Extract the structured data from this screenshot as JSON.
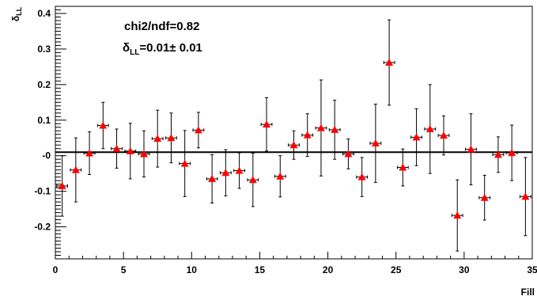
{
  "chart_data": {
    "type": "scatter",
    "xlabel": "Fill",
    "ylabel_symbol": "δ",
    "ylabel_subscript": "LL",
    "xlim": [
      0,
      35
    ],
    "ylim": [
      -0.29,
      0.42
    ],
    "x_ticks": [
      0,
      5,
      10,
      15,
      20,
      25,
      30,
      35
    ],
    "y_ticks": [
      -0.2,
      -0.1,
      0,
      0.1,
      0.2,
      0.3,
      0.4
    ],
    "y_tick_labels": [
      "-0.2",
      "-0.1",
      "-0",
      "0.1",
      "0.2",
      "0.3",
      "0.4"
    ],
    "x_tick_labels": [
      "0",
      "5",
      "10",
      "15",
      "20",
      "25",
      "30",
      "35"
    ],
    "fit_line_y": 0.01,
    "stats": {
      "chi2_text": "chi2/ndf=0.82",
      "delta_symbol": "δ",
      "delta_subscript": "LL",
      "delta_value": "=0.01",
      "pm_symbol": "±",
      "delta_error": " 0.01"
    },
    "marker_color": "#ff0000",
    "x_half_width": 0.4,
    "points": [
      {
        "x": 0.5,
        "y": -0.085,
        "err": 0.085
      },
      {
        "x": 1.5,
        "y": -0.04,
        "err": 0.09
      },
      {
        "x": 2.5,
        "y": 0.007,
        "err": 0.06
      },
      {
        "x": 3.5,
        "y": 0.085,
        "err": 0.065
      },
      {
        "x": 4.5,
        "y": 0.02,
        "err": 0.055
      },
      {
        "x": 5.5,
        "y": 0.013,
        "err": 0.078
      },
      {
        "x": 6.5,
        "y": 0.005,
        "err": 0.065
      },
      {
        "x": 7.5,
        "y": 0.048,
        "err": 0.08
      },
      {
        "x": 8.5,
        "y": 0.05,
        "err": 0.07
      },
      {
        "x": 9.5,
        "y": -0.022,
        "err": 0.093
      },
      {
        "x": 10.5,
        "y": 0.072,
        "err": 0.05
      },
      {
        "x": 11.5,
        "y": -0.065,
        "err": 0.068
      },
      {
        "x": 12.5,
        "y": -0.048,
        "err": 0.065
      },
      {
        "x": 13.5,
        "y": -0.042,
        "err": 0.05
      },
      {
        "x": 14.5,
        "y": -0.068,
        "err": 0.075
      },
      {
        "x": 15.5,
        "y": 0.088,
        "err": 0.075
      },
      {
        "x": 16.5,
        "y": -0.058,
        "err": 0.058
      },
      {
        "x": 17.5,
        "y": 0.03,
        "err": 0.04
      },
      {
        "x": 18.5,
        "y": 0.058,
        "err": 0.06
      },
      {
        "x": 19.5,
        "y": 0.078,
        "err": 0.135
      },
      {
        "x": 20.5,
        "y": 0.073,
        "err": 0.083
      },
      {
        "x": 21.5,
        "y": 0.005,
        "err": 0.042
      },
      {
        "x": 22.5,
        "y": -0.06,
        "err": 0.055
      },
      {
        "x": 23.5,
        "y": 0.035,
        "err": 0.11
      },
      {
        "x": 24.5,
        "y": 0.262,
        "err": 0.12
      },
      {
        "x": 25.5,
        "y": -0.033,
        "err": 0.052
      },
      {
        "x": 26.5,
        "y": 0.052,
        "err": 0.08
      },
      {
        "x": 27.5,
        "y": 0.075,
        "err": 0.125
      },
      {
        "x": 28.5,
        "y": 0.057,
        "err": 0.055
      },
      {
        "x": 29.5,
        "y": -0.168,
        "err": 0.1
      },
      {
        "x": 30.5,
        "y": 0.018,
        "err": 0.1
      },
      {
        "x": 31.5,
        "y": -0.118,
        "err": 0.063
      },
      {
        "x": 32.5,
        "y": 0.003,
        "err": 0.05
      },
      {
        "x": 33.5,
        "y": 0.008,
        "err": 0.078
      },
      {
        "x": 34.5,
        "y": -0.115,
        "err": 0.11
      }
    ]
  }
}
